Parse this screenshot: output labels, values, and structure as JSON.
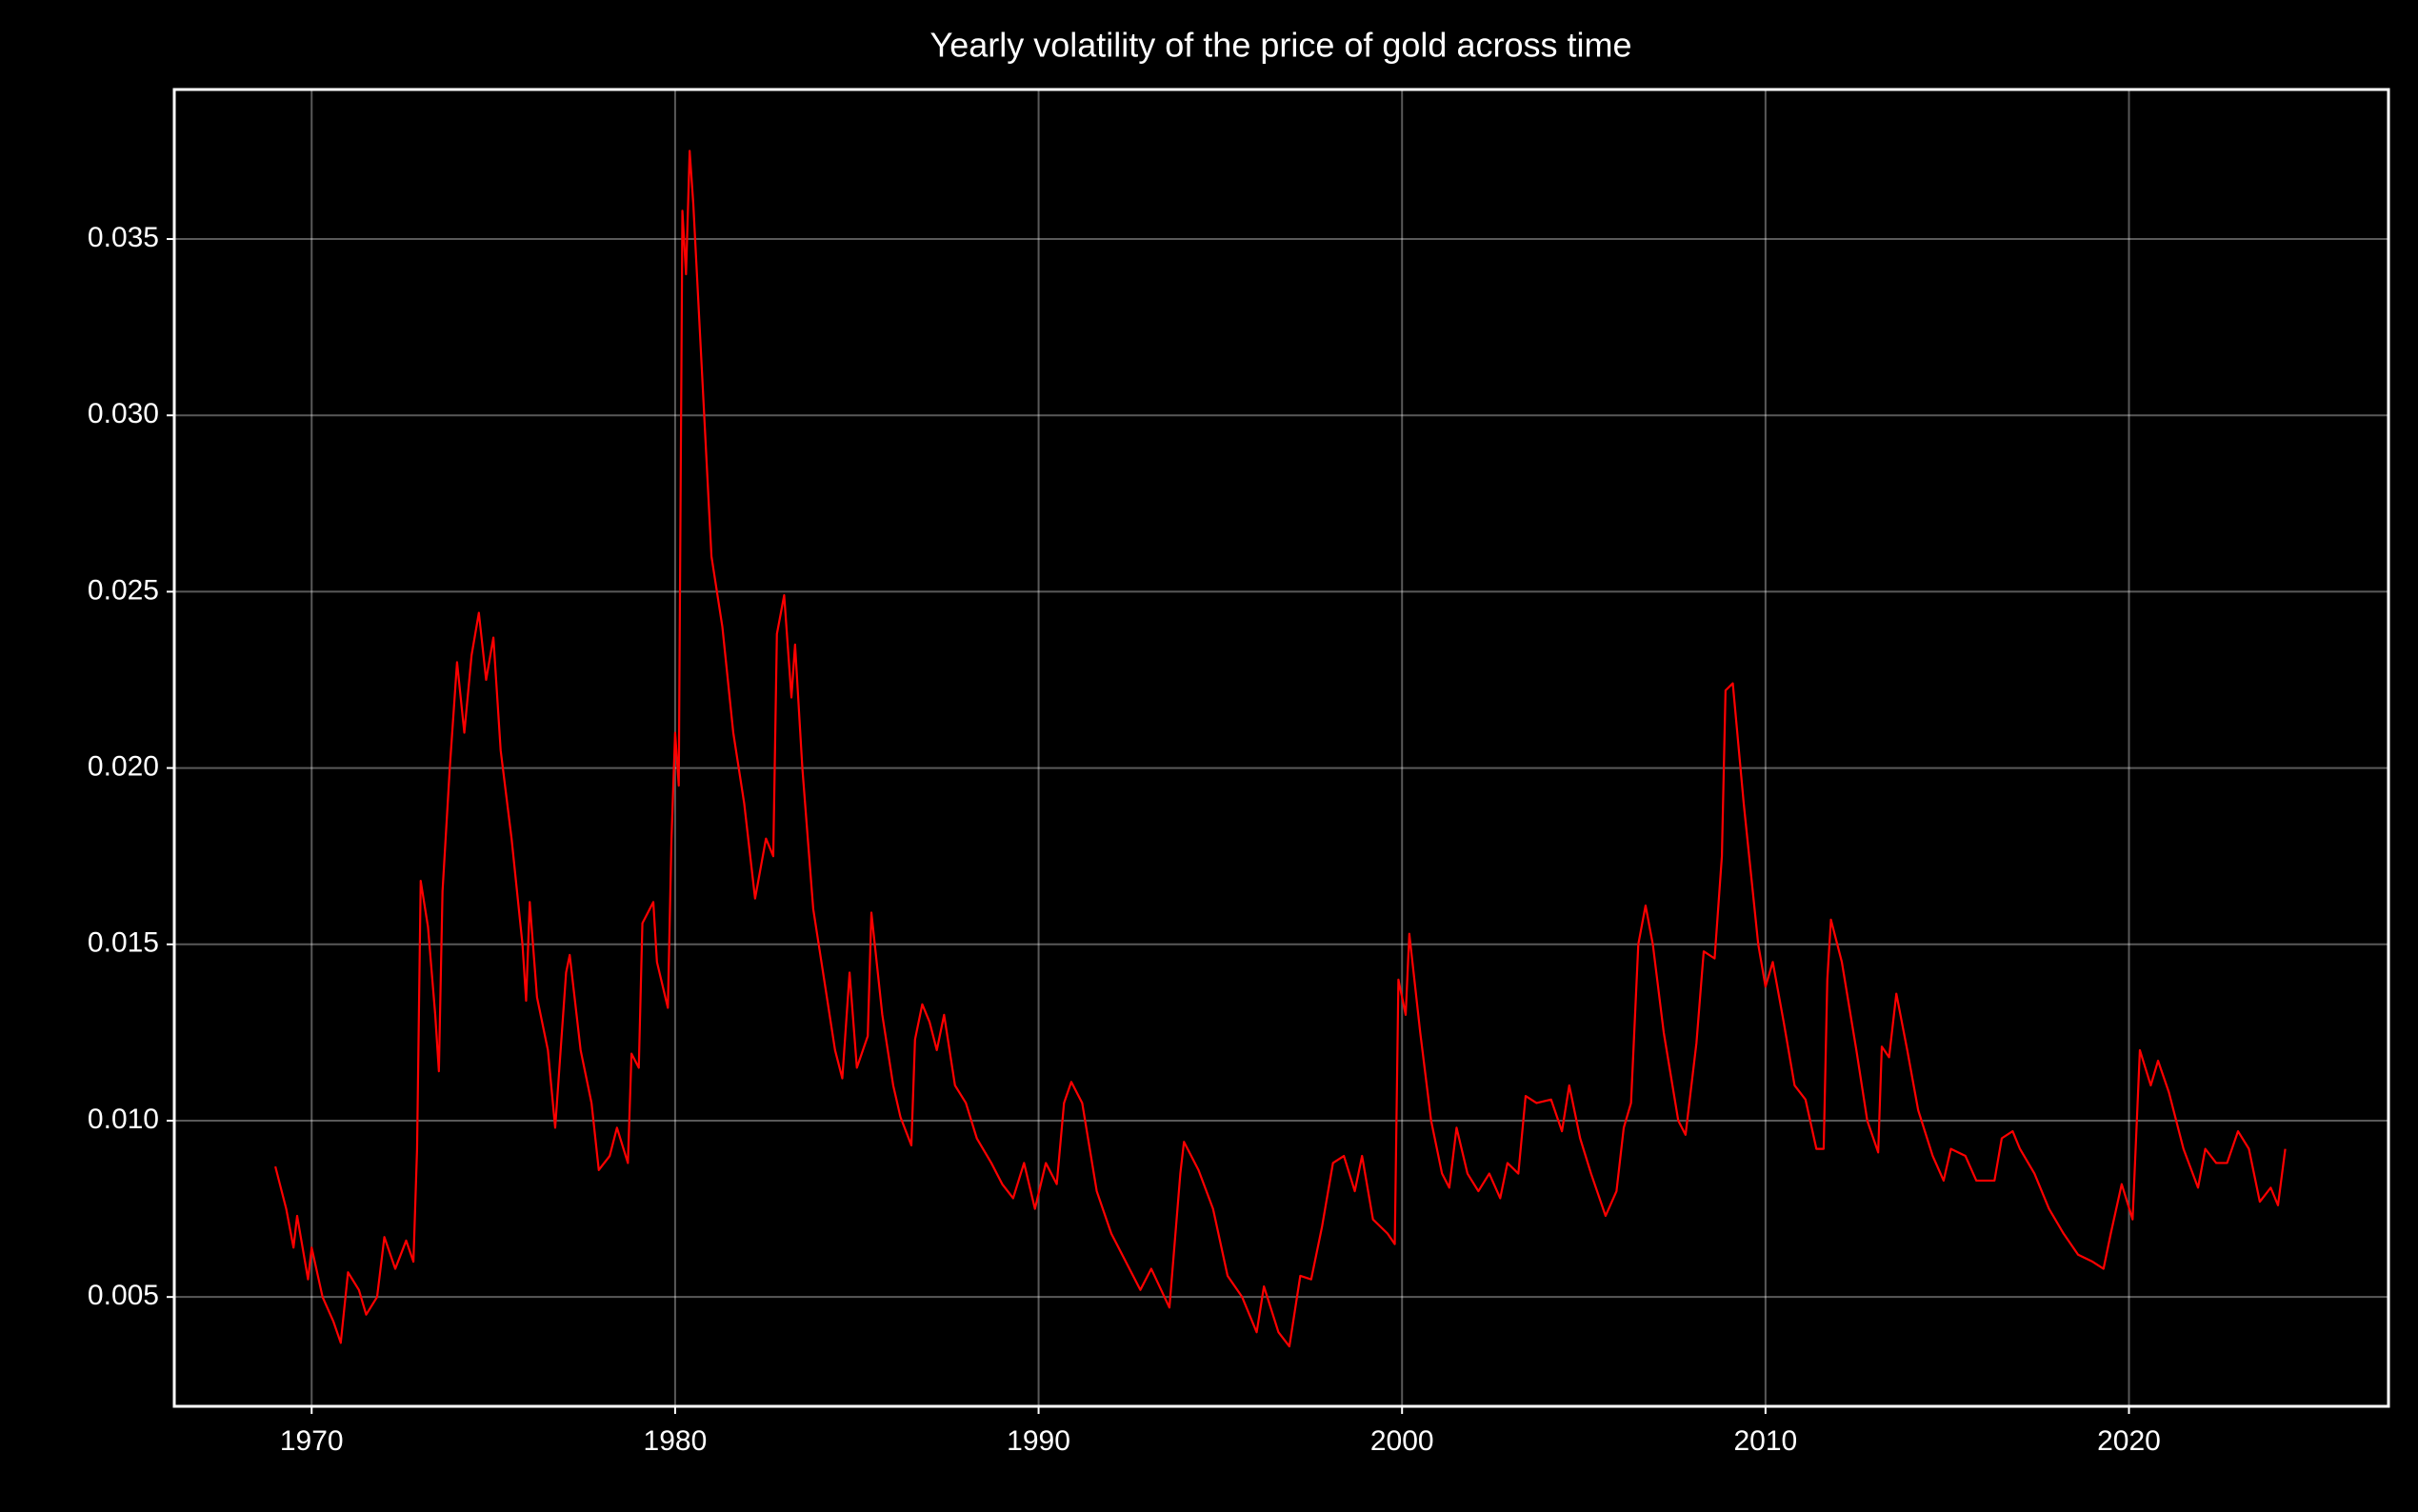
{
  "chart_data": {
    "type": "line",
    "title": "Yearly volatility of the price of gold across time",
    "x": [
      1969.0,
      1969.3,
      1969.5,
      1969.6,
      1969.9,
      1970.0,
      1970.3,
      1970.6,
      1970.8,
      1971.0,
      1971.3,
      1971.5,
      1971.8,
      1972.0,
      1972.3,
      1972.6,
      1972.8,
      1972.9,
      1973.0,
      1973.2,
      1973.4,
      1973.5,
      1973.6,
      1973.8,
      1974.0,
      1974.2,
      1974.4,
      1974.6,
      1974.8,
      1975.0,
      1975.2,
      1975.5,
      1975.8,
      1975.9,
      1976.0,
      1976.2,
      1976.5,
      1976.7,
      1977.0,
      1977.1,
      1977.4,
      1977.7,
      1977.9,
      1978.2,
      1978.4,
      1978.7,
      1978.8,
      1979.0,
      1979.1,
      1979.4,
      1979.5,
      1979.8,
      1979.9,
      1980.0,
      1980.1,
      1980.2,
      1980.3,
      1980.4,
      1980.5,
      1980.7,
      1981.0,
      1981.3,
      1981.6,
      1981.9,
      1982.2,
      1982.5,
      1982.7,
      1982.8,
      1983.0,
      1983.2,
      1983.3,
      1983.5,
      1983.8,
      1984.1,
      1984.4,
      1984.6,
      1984.8,
      1985.0,
      1985.3,
      1985.4,
      1985.7,
      1986.0,
      1986.2,
      1986.5,
      1986.6,
      1986.8,
      1987.0,
      1987.2,
      1987.4,
      1987.7,
      1988.0,
      1988.3,
      1988.7,
      1989.0,
      1989.3,
      1989.6,
      1989.9,
      1990.2,
      1990.5,
      1990.7,
      1990.9,
      1991.2,
      1991.6,
      1992.0,
      1992.4,
      1992.8,
      1993.1,
      1993.6,
      1993.9,
      1994.0,
      1994.4,
      1994.8,
      1995.2,
      1995.6,
      1996.0,
      1996.2,
      1996.6,
      1996.9,
      1997.2,
      1997.5,
      1997.8,
      1998.1,
      1998.4,
      1998.7,
      1998.9,
      1999.2,
      1999.6,
      1999.8,
      1999.9,
      2000.1,
      2000.2,
      2000.5,
      2000.8,
      2001.1,
      2001.3,
      2001.5,
      2001.8,
      2002.1,
      2002.4,
      2002.7,
      2002.9,
      2003.2,
      2003.4,
      2003.7,
      2004.1,
      2004.4,
      2004.6,
      2004.9,
      2005.2,
      2005.6,
      2005.9,
      2006.1,
      2006.3,
      2006.5,
      2006.7,
      2006.9,
      2007.2,
      2007.6,
      2007.8,
      2008.1,
      2008.3,
      2008.6,
      2008.8,
      2008.9,
      2009.1,
      2009.4,
      2009.8,
      2010.0,
      2010.2,
      2010.5,
      2010.8,
      2011.1,
      2011.4,
      2011.6,
      2011.7,
      2011.8,
      2012.1,
      2012.5,
      2012.8,
      2013.1,
      2013.2,
      2013.4,
      2013.6,
      2013.9,
      2014.2,
      2014.6,
      2014.9,
      2015.1,
      2015.5,
      2015.8,
      2016.3,
      2016.5,
      2016.8,
      2017.0,
      2017.4,
      2017.8,
      2018.2,
      2018.6,
      2019.0,
      2019.3,
      2019.5,
      2019.8,
      2020.1,
      2020.3,
      2020.6,
      2020.8,
      2021.1,
      2021.5,
      2021.9,
      2022.1,
      2022.4,
      2022.7,
      2023.0,
      2023.3,
      2023.6,
      2023.9,
      2024.1,
      2024.3
    ],
    "values": [
      0.0087,
      0.0075,
      0.0064,
      0.0073,
      0.0055,
      0.0064,
      0.005,
      0.0043,
      0.0037,
      0.0057,
      0.0052,
      0.0045,
      0.005,
      0.0067,
      0.0058,
      0.0066,
      0.006,
      0.0092,
      0.0168,
      0.0155,
      0.013,
      0.0114,
      0.0165,
      0.02,
      0.023,
      0.021,
      0.0232,
      0.0244,
      0.0225,
      0.0237,
      0.0205,
      0.018,
      0.015,
      0.0134,
      0.0162,
      0.0135,
      0.012,
      0.0098,
      0.0142,
      0.0147,
      0.012,
      0.0105,
      0.0086,
      0.009,
      0.0098,
      0.0088,
      0.0119,
      0.0115,
      0.0156,
      0.0162,
      0.0145,
      0.0132,
      0.018,
      0.021,
      0.0195,
      0.0358,
      0.034,
      0.0375,
      0.036,
      0.032,
      0.026,
      0.024,
      0.021,
      0.019,
      0.0163,
      0.018,
      0.0175,
      0.0238,
      0.0249,
      0.022,
      0.0235,
      0.02,
      0.016,
      0.014,
      0.012,
      0.0112,
      0.0142,
      0.0115,
      0.0124,
      0.0159,
      0.013,
      0.011,
      0.0101,
      0.0093,
      0.0123,
      0.0133,
      0.0128,
      0.012,
      0.013,
      0.011,
      0.0105,
      0.0095,
      0.0088,
      0.0082,
      0.0078,
      0.0088,
      0.0075,
      0.0088,
      0.0082,
      0.0105,
      0.0111,
      0.0105,
      0.008,
      0.0068,
      0.006,
      0.0052,
      0.0058,
      0.0047,
      0.0085,
      0.0094,
      0.0086,
      0.0075,
      0.0056,
      0.005,
      0.004,
      0.0053,
      0.004,
      0.0036,
      0.0056,
      0.0055,
      0.007,
      0.0088,
      0.009,
      0.008,
      0.009,
      0.0072,
      0.0068,
      0.0065,
      0.014,
      0.013,
      0.0153,
      0.0125,
      0.01,
      0.0085,
      0.0081,
      0.0098,
      0.0085,
      0.008,
      0.0085,
      0.0078,
      0.0088,
      0.0085,
      0.0107,
      0.0105,
      0.0106,
      0.0097,
      0.011,
      0.0095,
      0.0085,
      0.0073,
      0.008,
      0.0098,
      0.0105,
      0.015,
      0.0161,
      0.015,
      0.0125,
      0.01,
      0.0096,
      0.0122,
      0.0148,
      0.0146,
      0.0175,
      0.0222,
      0.0224,
      0.019,
      0.015,
      0.0138,
      0.0145,
      0.0128,
      0.011,
      0.0106,
      0.0092,
      0.0092,
      0.014,
      0.0157,
      0.0145,
      0.012,
      0.01,
      0.0091,
      0.0121,
      0.0118,
      0.0136,
      0.012,
      0.0103,
      0.009,
      0.0083,
      0.0092,
      0.009,
      0.0083,
      0.0083,
      0.0095,
      0.0097,
      0.0092,
      0.0085,
      0.0075,
      0.0068,
      0.0062,
      0.006,
      0.0058,
      0.0068,
      0.0082,
      0.0072,
      0.012,
      0.011,
      0.0117,
      0.0108,
      0.0092,
      0.0081,
      0.0092,
      0.0088,
      0.0088,
      0.0097,
      0.0092,
      0.0077,
      0.0081,
      0.0076,
      0.0092
    ],
    "color": "#ff0000",
    "xlim": [
      1966.22,
      2027.14
    ],
    "xticks": [
      1970,
      1980,
      1990,
      2000,
      2010,
      2020
    ],
    "ylim": [
      0.0019,
      0.03924
    ],
    "yticks": [
      0.005,
      {
        "value": 0.01,
        "label": "0.010"
      },
      0.015,
      {
        "value": 0.02,
        "label": "0.020"
      },
      0.025,
      {
        "value": 0.03,
        "label": "0.030"
      },
      0.035
    ],
    "grid": true
  }
}
